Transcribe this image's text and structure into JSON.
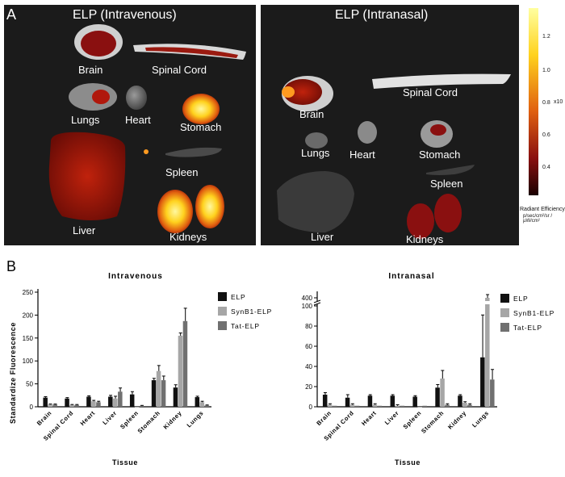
{
  "figure": {
    "panel_a_label": "A",
    "panel_b_label": "B",
    "left_image_title": "ELP (Intravenous)",
    "right_image_title": "ELP (Intranasal)",
    "left_organs": [
      "Brain",
      "Spinal Cord",
      "Lungs",
      "Heart",
      "Stomach",
      "Spleen",
      "Liver",
      "Kidneys"
    ],
    "right_organs": [
      "Brain",
      "Spinal Cord",
      "Lungs",
      "Heart",
      "Stomach",
      "Spleen",
      "Liver",
      "Kidneys"
    ],
    "colorbar": {
      "ticks": [
        "1.2",
        "1.0",
        "0.8",
        "0.6",
        "0.4"
      ],
      "exponent": "x10",
      "title": "Radiant Efficiency",
      "units": "p/sec/cm²/sr / µW/cm²"
    },
    "colors": {
      "elp": "#111111",
      "synb1": "#a6a6a6",
      "tat": "#707070"
    }
  },
  "chart_data": [
    {
      "type": "bar",
      "title": "Intravenous",
      "xlabel": "Tissue",
      "ylabel": "Standardize Fluorescence",
      "categories": [
        "Brain",
        "Spinal Cord",
        "Heart",
        "Liver",
        "Spleen",
        "Stomach",
        "Kidney",
        "Lungs"
      ],
      "ylim": [
        0,
        250
      ],
      "yticks": [
        "0",
        "50",
        "100",
        "150",
        "200",
        "250"
      ],
      "series": [
        {
          "name": "ELP",
          "values": [
            20,
            18,
            22,
            22,
            27,
            58,
            42,
            21
          ],
          "errors": [
            2,
            2,
            2,
            3,
            6,
            4,
            6,
            2
          ]
        },
        {
          "name": "SynB1-ELP",
          "values": [
            5,
            4,
            12,
            18,
            0,
            78,
            155,
            10
          ],
          "errors": [
            1,
            1,
            2,
            5,
            0,
            12,
            6,
            2
          ]
        },
        {
          "name": "Tat-ELP",
          "values": [
            5,
            4,
            10,
            33,
            2,
            58,
            187,
            3
          ],
          "errors": [
            1,
            1,
            2,
            8,
            1,
            9,
            28,
            1
          ]
        }
      ]
    },
    {
      "type": "bar",
      "title": "Intranasal",
      "xlabel": "Tissue",
      "categories": [
        "Brain",
        "Spinal Cord",
        "Heart",
        "Liver",
        "Spleen",
        "Stomach",
        "Kidney",
        "Lungs"
      ],
      "ylim": [
        0,
        100
      ],
      "axis_break": {
        "upper_tick": "400"
      },
      "yticks": [
        "0",
        "20",
        "40",
        "60",
        "80",
        "100"
      ],
      "series": [
        {
          "name": "ELP",
          "values": [
            12,
            9,
            11,
            11,
            10,
            19,
            11,
            49
          ],
          "errors": [
            2,
            3,
            1,
            1,
            1,
            3,
            1,
            42
          ]
        },
        {
          "name": "SynB1-ELP",
          "values": [
            2,
            2,
            2,
            1,
            0,
            28,
            4,
            400
          ],
          "errors": [
            1,
            1,
            1,
            1,
            0,
            8,
            1,
            20
          ]
        },
        {
          "name": "Tat-ELP",
          "values": [
            1,
            1,
            1,
            1,
            1,
            2,
            2,
            27
          ],
          "errors": [
            0,
            0,
            0,
            0,
            0,
            1,
            1,
            10
          ]
        }
      ]
    }
  ]
}
